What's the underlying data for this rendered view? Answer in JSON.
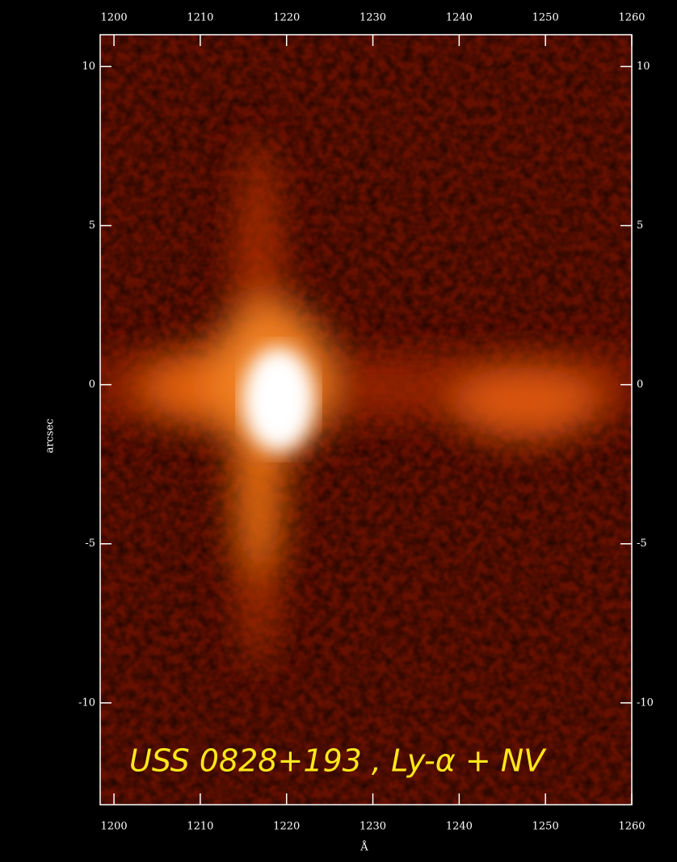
{
  "chart_data": {
    "type": "image",
    "annotation": "USS 0828+193 , Ly-α + NV",
    "xlabel": "Å",
    "ylabel": "arcsec",
    "xlim": [
      1198.4,
      1260
    ],
    "ylim": [
      -13.2,
      11
    ],
    "xticks": [
      1200,
      1210,
      1220,
      1230,
      1240,
      1250,
      1260
    ],
    "yticks": [
      -10,
      -5,
      0,
      5,
      10
    ]
  }
}
